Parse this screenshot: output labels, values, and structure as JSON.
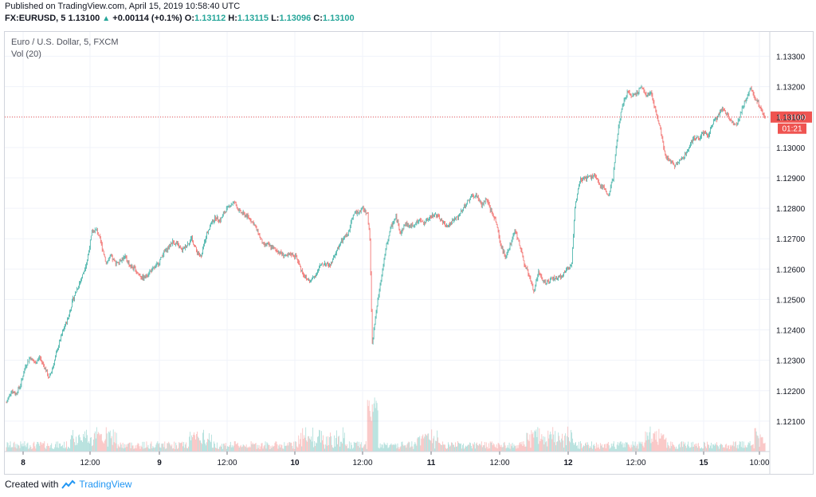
{
  "header": {
    "published": "Published on TradingView.com, April 15, 2019 10:58:40 UTC",
    "symbol": "FX:EURUSD, 5",
    "last": "1.13100",
    "change": "+0.00114 (+0.1%)",
    "o_label": "O:",
    "o_value": "1.13112",
    "h_label": "H:",
    "h_value": "1.13115",
    "l_label": "L:",
    "l_value": "1.13096",
    "c_label": "C:",
    "c_value": "1.13100"
  },
  "legend": {
    "title": "Euro / U.S. Dollar, 5, FXCM",
    "volume": "Vol (20)"
  },
  "footer": {
    "created_with": "Created with",
    "brand": "TradingView"
  },
  "colors": {
    "up": "#26a69a",
    "down": "#ef5350",
    "price_line": "#ef5350",
    "grid": "#f0f3fa"
  },
  "chart_data": {
    "type": "candlestick",
    "symbol": "FX:EURUSD",
    "interval": "5",
    "y_ticks": [
      "1.13300",
      "1.13200",
      "1.13100",
      "1.13000",
      "1.12900",
      "1.12800",
      "1.12700",
      "1.12600",
      "1.12500",
      "1.12400",
      "1.12300",
      "1.12200",
      "1.12100"
    ],
    "ylim": [
      1.12,
      1.1338
    ],
    "x_ticks": [
      "8",
      "12:00",
      "9",
      "12:00",
      "10",
      "12:00",
      "11",
      "12:00",
      "12",
      "12:00",
      "15",
      "10:00"
    ],
    "last_price_label": "1.13100",
    "countdown_label": "01:21",
    "last_price": 1.131,
    "price_path": [
      [
        0,
        1.1216
      ],
      [
        6,
        1.122
      ],
      [
        12,
        1.1219
      ],
      [
        18,
        1.1222
      ],
      [
        24,
        1.1228
      ],
      [
        30,
        1.1231
      ],
      [
        36,
        1.1229
      ],
      [
        42,
        1.1231
      ],
      [
        48,
        1.1228
      ],
      [
        54,
        1.1224
      ],
      [
        60,
        1.1229
      ],
      [
        66,
        1.1235
      ],
      [
        72,
        1.124
      ],
      [
        78,
        1.1244
      ],
      [
        84,
        1.125
      ],
      [
        90,
        1.1254
      ],
      [
        96,
        1.1258
      ],
      [
        102,
        1.1263
      ],
      [
        108,
        1.1272
      ],
      [
        114,
        1.1273
      ],
      [
        120,
        1.1268
      ],
      [
        126,
        1.1262
      ],
      [
        132,
        1.1264
      ],
      [
        138,
        1.1262
      ],
      [
        144,
        1.1263
      ],
      [
        150,
        1.1264
      ],
      [
        156,
        1.1261
      ],
      [
        162,
        1.126
      ],
      [
        168,
        1.1258
      ],
      [
        174,
        1.1257
      ],
      [
        180,
        1.1259
      ],
      [
        186,
        1.126
      ],
      [
        192,
        1.1262
      ],
      [
        198,
        1.1265
      ],
      [
        204,
        1.1267
      ],
      [
        210,
        1.1269
      ],
      [
        216,
        1.1268
      ],
      [
        222,
        1.1266
      ],
      [
        228,
        1.1268
      ],
      [
        234,
        1.127
      ],
      [
        240,
        1.1266
      ],
      [
        246,
        1.1264
      ],
      [
        252,
        1.1271
      ],
      [
        258,
        1.1275
      ],
      [
        264,
        1.1277
      ],
      [
        270,
        1.1276
      ],
      [
        276,
        1.1279
      ],
      [
        282,
        1.1281
      ],
      [
        288,
        1.1282
      ],
      [
        294,
        1.1279
      ],
      [
        300,
        1.1278
      ],
      [
        306,
        1.1277
      ],
      [
        312,
        1.1275
      ],
      [
        318,
        1.1272
      ],
      [
        324,
        1.1268
      ],
      [
        330,
        1.1268
      ],
      [
        336,
        1.1267
      ],
      [
        342,
        1.1266
      ],
      [
        348,
        1.1265
      ],
      [
        354,
        1.1264
      ],
      [
        360,
        1.1265
      ],
      [
        366,
        1.1264
      ],
      [
        372,
        1.126
      ],
      [
        378,
        1.1257
      ],
      [
        384,
        1.1256
      ],
      [
        390,
        1.1258
      ],
      [
        396,
        1.1261
      ],
      [
        402,
        1.1262
      ],
      [
        408,
        1.1261
      ],
      [
        414,
        1.1264
      ],
      [
        420,
        1.1268
      ],
      [
        426,
        1.127
      ],
      [
        432,
        1.1272
      ],
      [
        438,
        1.1278
      ],
      [
        444,
        1.1279
      ],
      [
        450,
        1.128
      ],
      [
        456,
        1.1278
      ],
      [
        459,
        1.127
      ],
      [
        462,
        1.1235
      ],
      [
        464,
        1.124
      ],
      [
        468,
        1.1248
      ],
      [
        474,
        1.1258
      ],
      [
        480,
        1.1268
      ],
      [
        486,
        1.1274
      ],
      [
        492,
        1.1277
      ],
      [
        498,
        1.1272
      ],
      [
        504,
        1.1275
      ],
      [
        510,
        1.1274
      ],
      [
        516,
        1.1275
      ],
      [
        522,
        1.1276
      ],
      [
        528,
        1.1275
      ],
      [
        534,
        1.1277
      ],
      [
        540,
        1.1278
      ],
      [
        546,
        1.1277
      ],
      [
        552,
        1.1275
      ],
      [
        558,
        1.1274
      ],
      [
        564,
        1.1276
      ],
      [
        570,
        1.1277
      ],
      [
        576,
        1.128
      ],
      [
        582,
        1.1282
      ],
      [
        588,
        1.1284
      ],
      [
        594,
        1.1284
      ],
      [
        600,
        1.1281
      ],
      [
        606,
        1.1283
      ],
      [
        612,
        1.1279
      ],
      [
        618,
        1.1276
      ],
      [
        624,
        1.1268
      ],
      [
        630,
        1.1264
      ],
      [
        636,
        1.1268
      ],
      [
        642,
        1.1273
      ],
      [
        648,
        1.1268
      ],
      [
        654,
        1.1262
      ],
      [
        660,
        1.1258
      ],
      [
        666,
        1.1253
      ],
      [
        672,
        1.1259
      ],
      [
        678,
        1.1256
      ],
      [
        684,
        1.1256
      ],
      [
        690,
        1.1257
      ],
      [
        696,
        1.1257
      ],
      [
        702,
        1.1258
      ],
      [
        708,
        1.126
      ],
      [
        714,
        1.1262
      ],
      [
        718,
        1.128
      ],
      [
        724,
        1.1289
      ],
      [
        730,
        1.129
      ],
      [
        736,
        1.129
      ],
      [
        742,
        1.1291
      ],
      [
        748,
        1.1288
      ],
      [
        754,
        1.1287
      ],
      [
        760,
        1.1284
      ],
      [
        766,
        1.129
      ],
      [
        772,
        1.1305
      ],
      [
        778,
        1.1314
      ],
      [
        784,
        1.1318
      ],
      [
        790,
        1.1317
      ],
      [
        796,
        1.1318
      ],
      [
        802,
        1.132
      ],
      [
        808,
        1.1317
      ],
      [
        814,
        1.1318
      ],
      [
        820,
        1.1312
      ],
      [
        826,
        1.1306
      ],
      [
        832,
        1.1297
      ],
      [
        838,
        1.1296
      ],
      [
        844,
        1.1294
      ],
      [
        850,
        1.1296
      ],
      [
        856,
        1.1297
      ],
      [
        862,
        1.13
      ],
      [
        868,
        1.1303
      ],
      [
        874,
        1.1303
      ],
      [
        880,
        1.1305
      ],
      [
        886,
        1.1304
      ],
      [
        892,
        1.1308
      ],
      [
        898,
        1.131
      ],
      [
        904,
        1.1313
      ],
      [
        910,
        1.1311
      ],
      [
        916,
        1.1308
      ],
      [
        922,
        1.1307
      ],
      [
        928,
        1.1312
      ],
      [
        934,
        1.1316
      ],
      [
        940,
        1.132
      ],
      [
        946,
        1.1316
      ],
      [
        952,
        1.1313
      ],
      [
        958,
        1.131
      ]
    ]
  }
}
